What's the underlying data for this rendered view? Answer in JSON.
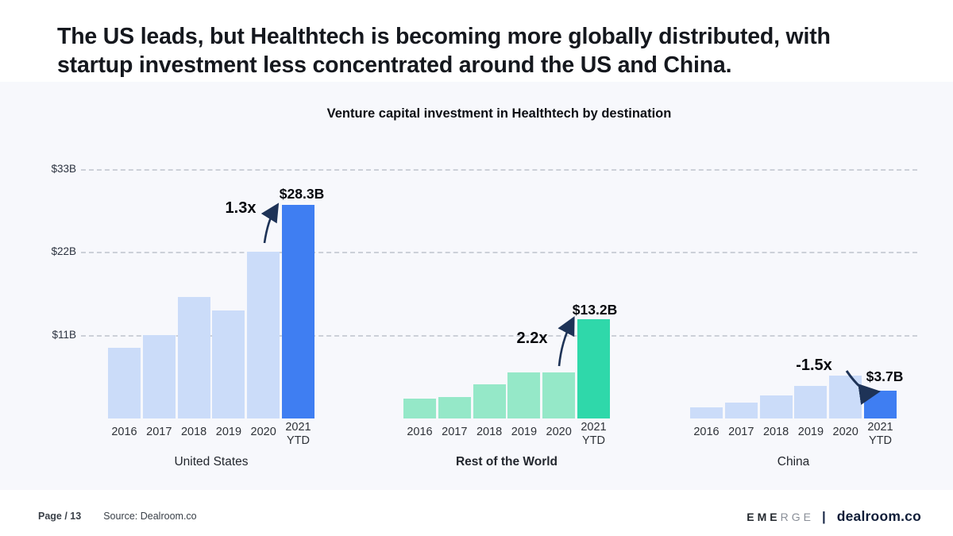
{
  "slide": {
    "title": "The US leads, but Healthtech is becoming more globally distributed, with\nstartup investment less concentrated around the US and China."
  },
  "chart_data": {
    "type": "bar",
    "title": "Venture capital investment in Healthtech by destination",
    "unit": "USD billions",
    "categories": [
      "2016",
      "2017",
      "2018",
      "2019",
      "2020",
      "2021\nYTD"
    ],
    "ylim": [
      0,
      33
    ],
    "grid": "horizontal-dashed",
    "legend": "none",
    "y_ticks": [
      {
        "label": "$33B",
        "value": 33
      },
      {
        "label": "$22B",
        "value": 22
      },
      {
        "label": "$11B",
        "value": 11
      }
    ],
    "groups": [
      {
        "label": "United States",
        "label_bold": false,
        "values": [
          9.4,
          11.0,
          16.1,
          14.3,
          22.1,
          28.3
        ],
        "highlight_index": 5,
        "base_color": "#cbdcf9",
        "highlight_color": "#3f7ef2",
        "annotation": {
          "multiplier": "1.3x",
          "value_label": "$28.3B",
          "trend": "up"
        }
      },
      {
        "label": "Rest of the World",
        "label_bold": true,
        "values": [
          2.6,
          2.8,
          4.5,
          6.1,
          6.1,
          13.2
        ],
        "highlight_index": 5,
        "base_color": "#95e8c8",
        "highlight_color": "#2fd8aa",
        "annotation": {
          "multiplier": "2.2x",
          "value_label": "$13.2B",
          "trend": "up"
        }
      },
      {
        "label": "China",
        "label_bold": false,
        "values": [
          1.5,
          2.1,
          3.1,
          4.3,
          5.7,
          3.7
        ],
        "highlight_index": 5,
        "base_color": "#cbdcf9",
        "highlight_color": "#3f7ef2",
        "annotation": {
          "multiplier": "-1.5x",
          "value_label": "$3.7B",
          "trend": "down"
        }
      }
    ],
    "annotation_arrow_color": "#1e3357"
  },
  "footer": {
    "page_label": "Page / 13",
    "source_label": "Source: Dealroom.co",
    "brand": {
      "emerge_dark": "EME",
      "emerge_light": "RGE",
      "divider": "|",
      "dealroom": "dealroom.co"
    }
  }
}
